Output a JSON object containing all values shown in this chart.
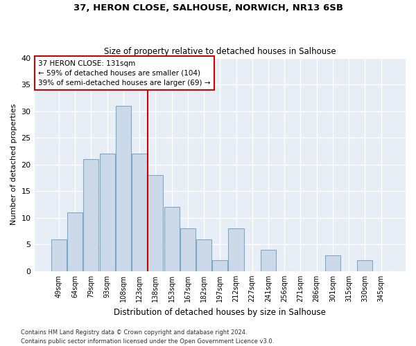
{
  "title": "37, HERON CLOSE, SALHOUSE, NORWICH, NR13 6SB",
  "subtitle": "Size of property relative to detached houses in Salhouse",
  "xlabel": "Distribution of detached houses by size in Salhouse",
  "ylabel": "Number of detached properties",
  "categories": [
    "49sqm",
    "64sqm",
    "79sqm",
    "93sqm",
    "108sqm",
    "123sqm",
    "138sqm",
    "153sqm",
    "167sqm",
    "182sqm",
    "197sqm",
    "212sqm",
    "227sqm",
    "241sqm",
    "256sqm",
    "271sqm",
    "286sqm",
    "301sqm",
    "315sqm",
    "330sqm",
    "345sqm"
  ],
  "values": [
    6,
    11,
    21,
    22,
    31,
    22,
    18,
    12,
    8,
    6,
    2,
    8,
    0,
    4,
    0,
    0,
    0,
    3,
    0,
    2,
    0
  ],
  "bar_color": "#ccd9e8",
  "bar_edge_color": "#7aaac8",
  "red_line_x": 5.5,
  "annotation_text": "37 HERON CLOSE: 131sqm\n← 59% of detached houses are smaller (104)\n39% of semi-detached houses are larger (69) →",
  "annotation_box_facecolor": "#ffffff",
  "annotation_border_color": "#cc0000",
  "ylim": [
    0,
    40
  ],
  "yticks": [
    0,
    5,
    10,
    15,
    20,
    25,
    30,
    35,
    40
  ],
  "footnote1": "Contains HM Land Registry data © Crown copyright and database right 2024.",
  "footnote2": "Contains public sector information licensed under the Open Government Licence v3.0.",
  "fig_facecolor": "#ffffff",
  "plot_facecolor": "#e8eef5",
  "grid_color": "#ffffff"
}
